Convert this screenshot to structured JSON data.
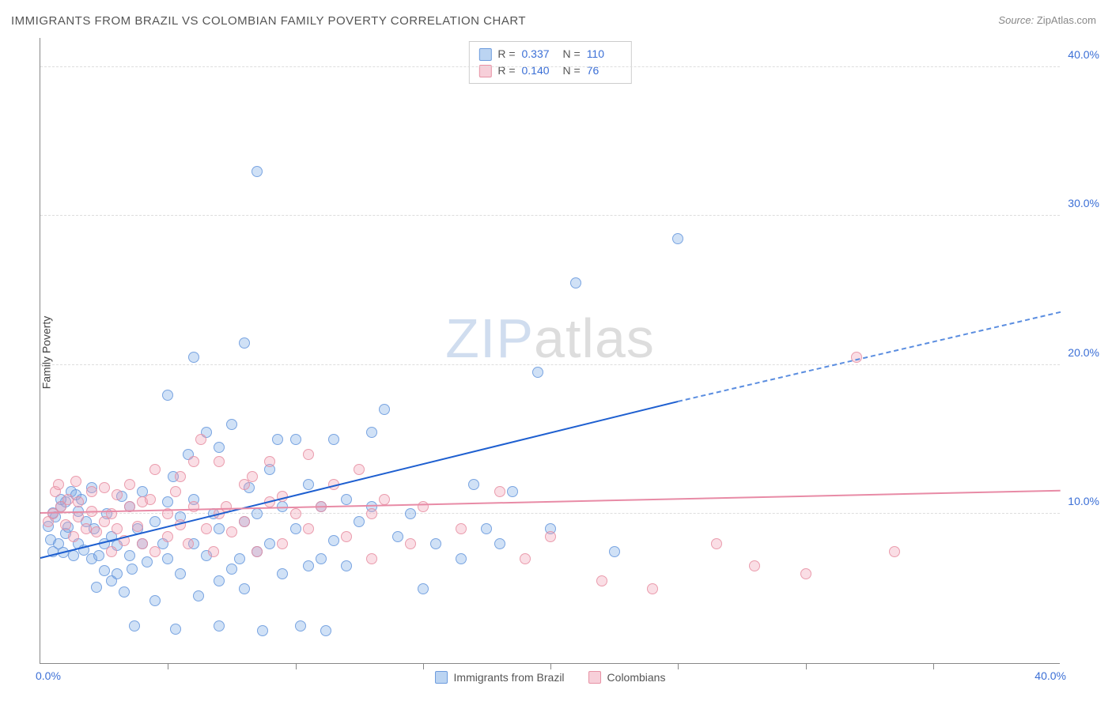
{
  "title": "IMMIGRANTS FROM BRAZIL VS COLOMBIAN FAMILY POVERTY CORRELATION CHART",
  "source_label": "Source:",
  "source_value": "ZipAtlas.com",
  "ylabel": "Family Poverty",
  "watermark_a": "ZIP",
  "watermark_b": "atlas",
  "chart": {
    "type": "scatter",
    "xlim": [
      0,
      40
    ],
    "ylim": [
      0,
      42
    ],
    "yticks": [
      10,
      20,
      30,
      40
    ],
    "ytick_labels": [
      "10.0%",
      "20.0%",
      "30.0%",
      "40.0%"
    ],
    "xtick_labels": [
      "0.0%",
      "40.0%"
    ],
    "vgrids_at": [
      5,
      10,
      15,
      20,
      25,
      30,
      35
    ],
    "background_color": "#ffffff",
    "grid_color": "#dddddd",
    "axis_color": "#888888",
    "tick_label_color": "#3b6fd6",
    "point_radius": 7,
    "series": [
      {
        "name": "Immigrants from Brazil",
        "color_fill": "rgba(120,170,230,0.35)",
        "color_stroke": "rgba(100,150,220,0.8)",
        "R": "0.337",
        "N": "110",
        "trend": {
          "x0": 0,
          "y0": 7.0,
          "x1": 25,
          "y1": 17.5,
          "x_dash_to": 40,
          "y_dash_to": 23.5,
          "color": "#1e5fd0"
        },
        "points": [
          [
            0.3,
            9.2
          ],
          [
            0.5,
            10.1
          ],
          [
            0.4,
            8.3
          ],
          [
            0.6,
            9.8
          ],
          [
            0.5,
            7.5
          ],
          [
            0.8,
            10.5
          ],
          [
            0.7,
            8.0
          ],
          [
            0.9,
            7.4
          ],
          [
            1.0,
            10.8
          ],
          [
            1.0,
            8.7
          ],
          [
            1.2,
            11.5
          ],
          [
            1.1,
            9.1
          ],
          [
            0.8,
            11.0
          ],
          [
            1.3,
            7.2
          ],
          [
            1.5,
            10.2
          ],
          [
            1.5,
            8.0
          ],
          [
            1.4,
            11.3
          ],
          [
            1.7,
            7.6
          ],
          [
            1.8,
            9.5
          ],
          [
            1.6,
            11.0
          ],
          [
            2.0,
            7.0
          ],
          [
            2.0,
            11.8
          ],
          [
            2.2,
            5.1
          ],
          [
            2.3,
            7.2
          ],
          [
            2.1,
            9.0
          ],
          [
            2.5,
            8.0
          ],
          [
            2.5,
            6.2
          ],
          [
            2.6,
            10.0
          ],
          [
            2.8,
            5.5
          ],
          [
            2.8,
            8.5
          ],
          [
            3.0,
            7.9
          ],
          [
            3.0,
            6.0
          ],
          [
            3.3,
            4.8
          ],
          [
            3.5,
            7.2
          ],
          [
            3.5,
            10.5
          ],
          [
            3.7,
            2.5
          ],
          [
            3.8,
            9.0
          ],
          [
            3.2,
            11.2
          ],
          [
            3.6,
            6.3
          ],
          [
            4.0,
            8.0
          ],
          [
            4.0,
            11.5
          ],
          [
            4.2,
            6.8
          ],
          [
            4.5,
            4.2
          ],
          [
            4.5,
            9.5
          ],
          [
            4.8,
            8.0
          ],
          [
            5.0,
            18.0
          ],
          [
            5.0,
            10.8
          ],
          [
            5.0,
            7.0
          ],
          [
            5.2,
            12.5
          ],
          [
            5.3,
            2.3
          ],
          [
            5.5,
            6.0
          ],
          [
            5.5,
            9.8
          ],
          [
            5.8,
            14.0
          ],
          [
            6.0,
            20.5
          ],
          [
            6.0,
            8.0
          ],
          [
            6.0,
            11.0
          ],
          [
            6.2,
            4.5
          ],
          [
            6.5,
            7.2
          ],
          [
            6.5,
            15.5
          ],
          [
            6.8,
            10.0
          ],
          [
            7.0,
            5.5
          ],
          [
            7.0,
            14.5
          ],
          [
            7.0,
            2.5
          ],
          [
            7.0,
            9.0
          ],
          [
            7.5,
            16.0
          ],
          [
            7.5,
            6.3
          ],
          [
            7.8,
            7.0
          ],
          [
            8.0,
            21.5
          ],
          [
            8.0,
            9.5
          ],
          [
            8.2,
            11.8
          ],
          [
            8.0,
            5.0
          ],
          [
            8.5,
            10.0
          ],
          [
            8.5,
            7.5
          ],
          [
            8.5,
            33.0
          ],
          [
            8.7,
            2.2
          ],
          [
            9.0,
            13.0
          ],
          [
            9.0,
            8.0
          ],
          [
            9.3,
            15.0
          ],
          [
            9.5,
            6.0
          ],
          [
            9.5,
            10.5
          ],
          [
            10.0,
            9.0
          ],
          [
            10.0,
            15.0
          ],
          [
            10.2,
            2.5
          ],
          [
            10.5,
            12.0
          ],
          [
            10.5,
            6.5
          ],
          [
            11.0,
            7.0
          ],
          [
            11.0,
            10.5
          ],
          [
            11.2,
            2.2
          ],
          [
            11.5,
            15.0
          ],
          [
            11.5,
            8.2
          ],
          [
            12.0,
            11.0
          ],
          [
            12.0,
            6.5
          ],
          [
            12.5,
            9.5
          ],
          [
            13.0,
            15.5
          ],
          [
            13.0,
            10.5
          ],
          [
            13.5,
            17.0
          ],
          [
            14.0,
            8.5
          ],
          [
            14.5,
            10.0
          ],
          [
            15.0,
            5.0
          ],
          [
            15.5,
            8.0
          ],
          [
            16.5,
            7.0
          ],
          [
            17.0,
            12.0
          ],
          [
            17.5,
            9.0
          ],
          [
            18.0,
            8.0
          ],
          [
            18.5,
            11.5
          ],
          [
            19.5,
            19.5
          ],
          [
            20.0,
            9.0
          ],
          [
            21.0,
            25.5
          ],
          [
            22.5,
            7.5
          ],
          [
            25.0,
            28.5
          ]
        ]
      },
      {
        "name": "Colombians",
        "color_fill": "rgba(240,160,180,0.35)",
        "color_stroke": "rgba(230,140,160,0.8)",
        "R": "0.140",
        "N": "76",
        "trend": {
          "x0": 0,
          "y0": 10.0,
          "x1": 40,
          "y1": 11.5,
          "color": "#e88ba6"
        },
        "points": [
          [
            0.3,
            9.5
          ],
          [
            0.5,
            10.0
          ],
          [
            0.6,
            11.5
          ],
          [
            0.7,
            12.0
          ],
          [
            0.8,
            10.5
          ],
          [
            1.0,
            9.3
          ],
          [
            1.1,
            11.0
          ],
          [
            1.3,
            8.5
          ],
          [
            1.4,
            12.2
          ],
          [
            1.5,
            9.8
          ],
          [
            1.5,
            10.8
          ],
          [
            1.8,
            9.0
          ],
          [
            2.0,
            11.5
          ],
          [
            2.0,
            10.2
          ],
          [
            2.2,
            8.8
          ],
          [
            2.5,
            11.8
          ],
          [
            2.5,
            9.5
          ],
          [
            2.8,
            7.5
          ],
          [
            2.8,
            10.0
          ],
          [
            3.0,
            9.0
          ],
          [
            3.0,
            11.3
          ],
          [
            3.3,
            8.2
          ],
          [
            3.5,
            10.5
          ],
          [
            3.5,
            12.0
          ],
          [
            3.8,
            9.2
          ],
          [
            4.0,
            10.8
          ],
          [
            4.0,
            8.0
          ],
          [
            4.3,
            11.0
          ],
          [
            4.5,
            7.5
          ],
          [
            4.5,
            13.0
          ],
          [
            5.0,
            10.0
          ],
          [
            5.0,
            8.5
          ],
          [
            5.3,
            11.5
          ],
          [
            5.5,
            9.3
          ],
          [
            5.5,
            12.5
          ],
          [
            5.8,
            8.0
          ],
          [
            6.0,
            10.5
          ],
          [
            6.0,
            13.5
          ],
          [
            6.3,
            15.0
          ],
          [
            6.5,
            9.0
          ],
          [
            6.8,
            7.5
          ],
          [
            7.0,
            13.5
          ],
          [
            7.0,
            10.0
          ],
          [
            7.3,
            10.5
          ],
          [
            7.5,
            8.8
          ],
          [
            8.0,
            12.0
          ],
          [
            8.0,
            9.5
          ],
          [
            8.3,
            12.5
          ],
          [
            8.5,
            7.5
          ],
          [
            9.0,
            10.8
          ],
          [
            9.0,
            13.5
          ],
          [
            9.5,
            8.0
          ],
          [
            9.5,
            11.2
          ],
          [
            10.0,
            10.0
          ],
          [
            10.5,
            9.0
          ],
          [
            10.5,
            14.0
          ],
          [
            11.0,
            10.5
          ],
          [
            11.5,
            12.0
          ],
          [
            12.0,
            8.5
          ],
          [
            12.5,
            13.0
          ],
          [
            13.0,
            10.0
          ],
          [
            13.0,
            7.0
          ],
          [
            13.5,
            11.0
          ],
          [
            14.5,
            8.0
          ],
          [
            15.0,
            10.5
          ],
          [
            16.5,
            9.0
          ],
          [
            18.0,
            11.5
          ],
          [
            19.0,
            7.0
          ],
          [
            20.0,
            8.5
          ],
          [
            22.0,
            5.5
          ],
          [
            24.0,
            5.0
          ],
          [
            26.5,
            8.0
          ],
          [
            28.0,
            6.5
          ],
          [
            30.0,
            6.0
          ],
          [
            32.0,
            20.5
          ],
          [
            33.5,
            7.5
          ]
        ]
      }
    ]
  },
  "stats_box": {
    "rows": [
      {
        "swatch": "blue",
        "R": "0.337",
        "N": "110"
      },
      {
        "swatch": "pink",
        "R": "0.140",
        "N": "76"
      }
    ],
    "r_label": "R =",
    "n_label": "N ="
  },
  "legend": {
    "items": [
      {
        "swatch": "blue",
        "label": "Immigrants from Brazil"
      },
      {
        "swatch": "pink",
        "label": "Colombians"
      }
    ]
  }
}
